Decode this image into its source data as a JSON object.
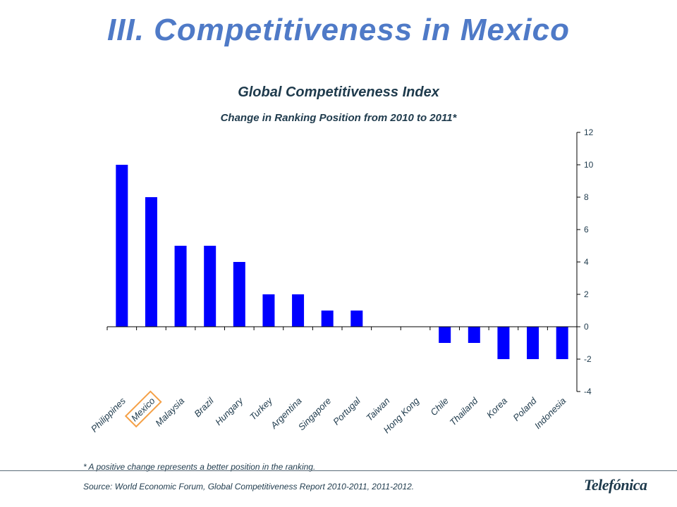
{
  "slide": {
    "title": "III. Competitiveness in Mexico",
    "footnote": "* A positive change represents a better position in the ranking.",
    "source": "Source: World Economic Forum, Global Competitiveness Report 2010-2011, 2011-2012.",
    "logo_text": "Telefónica"
  },
  "colors": {
    "title": "#4f7ac7",
    "text": "#1e3a4c",
    "bar": "#0000ff",
    "highlight": "#f5a046"
  },
  "chart_data": {
    "type": "bar",
    "title": "Global Competitiveness Index",
    "subtitle": "Change in Ranking Position from 2010 to 2011*",
    "categories": [
      "Philippines",
      "Mexico",
      "Malaysia",
      "Brazil",
      "Hungary",
      "Turkey",
      "Argentina",
      "Singapore",
      "Portugal",
      "Taiwan",
      "Hong Kong",
      "Chile",
      "Thailand",
      "Korea",
      "Poland",
      "Indonesia"
    ],
    "values": [
      10,
      8,
      5,
      5,
      4,
      2,
      2,
      1,
      1,
      0,
      0,
      -1,
      -1,
      -2,
      -2,
      -2
    ],
    "highlighted_category": "Mexico",
    "ylim": [
      -4,
      12
    ],
    "yticks": [
      12,
      10,
      8,
      6,
      4,
      2,
      0,
      -2,
      -4
    ],
    "y_axis_position": "right",
    "grid": false,
    "legend": "none"
  }
}
